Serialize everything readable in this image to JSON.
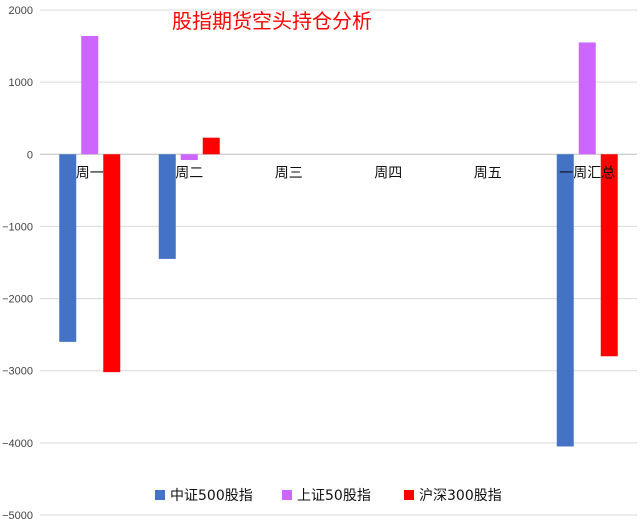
{
  "chart_data": {
    "type": "bar",
    "title": "股指期货空头持仓分析",
    "title_color": "#ff0000",
    "categories": [
      "周一",
      "周二",
      "周三",
      "周四",
      "周五",
      "一周汇总"
    ],
    "series": [
      {
        "name": "中证500股指",
        "color": "#4472c4",
        "values": [
          -2600,
          -1450,
          null,
          null,
          null,
          -4050
        ]
      },
      {
        "name": "上证50股指",
        "color": "#cc66ff",
        "values": [
          1640,
          -80,
          null,
          null,
          null,
          1550
        ]
      },
      {
        "name": "沪深300股指",
        "color": "#ff0000",
        "values": [
          -3020,
          230,
          null,
          null,
          null,
          -2800
        ]
      }
    ],
    "yticks": [
      "2000",
      "1000",
      "0",
      "−1000",
      "−2000",
      "−3000",
      "−4000",
      "−5000"
    ],
    "ylim": [
      -5000,
      2000
    ],
    "grid": true,
    "legend_position": "bottom"
  }
}
